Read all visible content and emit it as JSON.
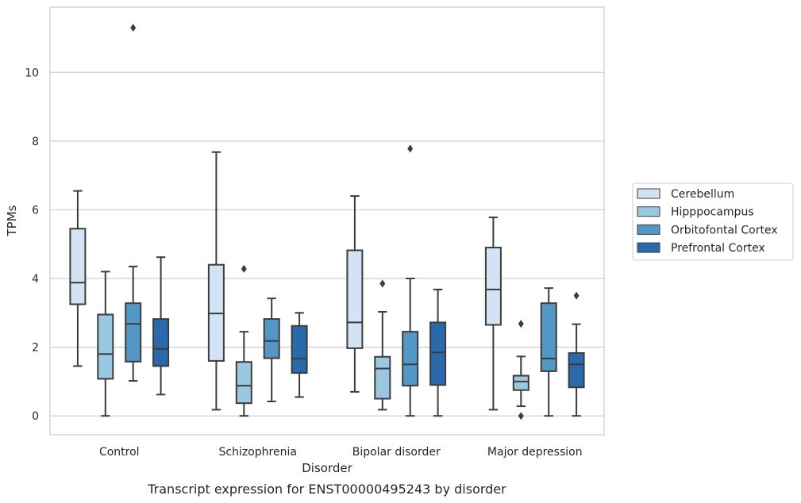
{
  "chart_data": {
    "type": "box",
    "xlabel": "Disorder",
    "ylabel": "TPMs",
    "caption": "Transcript expression for ENST00000495243 by disorder",
    "ylim": [
      -0.55,
      11.9
    ],
    "yticks": [
      "0",
      "2",
      "4",
      "6",
      "8",
      "10"
    ],
    "grid": "horizontal",
    "legend_position": "right",
    "categories": [
      "Control",
      "Schizophrenia",
      "Bipolar disorder",
      "Major depression"
    ],
    "series": [
      {
        "name": "Cerebellum",
        "color": "#d3e3f3",
        "boxes": [
          {
            "whislo": 1.45,
            "q1": 3.25,
            "med": 3.88,
            "q3": 5.45,
            "whishi": 6.55,
            "fliers": []
          },
          {
            "whislo": 0.18,
            "q1": 1.6,
            "med": 2.98,
            "q3": 4.4,
            "whishi": 7.68,
            "fliers": []
          },
          {
            "whislo": 0.7,
            "q1": 1.97,
            "med": 2.72,
            "q3": 4.82,
            "whishi": 6.4,
            "fliers": []
          },
          {
            "whislo": 0.18,
            "q1": 2.65,
            "med": 3.68,
            "q3": 4.9,
            "whishi": 5.78,
            "fliers": []
          }
        ]
      },
      {
        "name": "Hipppocampus",
        "color": "#9ac8e0",
        "boxes": [
          {
            "whislo": 0.0,
            "q1": 1.08,
            "med": 1.8,
            "q3": 2.95,
            "whishi": 4.2,
            "fliers": []
          },
          {
            "whislo": 0.0,
            "q1": 0.37,
            "med": 0.88,
            "q3": 1.57,
            "whishi": 2.45,
            "fliers": [
              4.28
            ]
          },
          {
            "whislo": 0.18,
            "q1": 0.5,
            "med": 1.38,
            "q3": 1.72,
            "whishi": 3.03,
            "fliers": [
              3.85
            ]
          },
          {
            "whislo": 0.28,
            "q1": 0.75,
            "med": 1.0,
            "q3": 1.17,
            "whishi": 1.73,
            "fliers": [
              0.0,
              2.68
            ]
          }
        ]
      },
      {
        "name": "Orbitofontal Cortex",
        "color": "#5297c6",
        "boxes": [
          {
            "whislo": 1.02,
            "q1": 1.58,
            "med": 2.68,
            "q3": 3.28,
            "whishi": 4.35,
            "fliers": [
              11.3
            ]
          },
          {
            "whislo": 0.42,
            "q1": 1.68,
            "med": 2.18,
            "q3": 2.82,
            "whishi": 3.42,
            "fliers": []
          },
          {
            "whislo": 0.0,
            "q1": 0.88,
            "med": 1.5,
            "q3": 2.45,
            "whishi": 4.0,
            "fliers": [
              7.78
            ]
          },
          {
            "whislo": 0.0,
            "q1": 1.3,
            "med": 1.67,
            "q3": 3.28,
            "whishi": 3.72,
            "fliers": []
          }
        ]
      },
      {
        "name": "Prefrontal Cortex",
        "color": "#2a69ac",
        "boxes": [
          {
            "whislo": 0.62,
            "q1": 1.45,
            "med": 1.95,
            "q3": 2.82,
            "whishi": 4.62,
            "fliers": []
          },
          {
            "whislo": 0.55,
            "q1": 1.25,
            "med": 1.67,
            "q3": 2.62,
            "whishi": 3.0,
            "fliers": []
          },
          {
            "whislo": 0.0,
            "q1": 0.9,
            "med": 1.85,
            "q3": 2.72,
            "whishi": 3.68,
            "fliers": []
          },
          {
            "whislo": 0.0,
            "q1": 0.83,
            "med": 1.5,
            "q3": 1.83,
            "whishi": 2.67,
            "fliers": [
              3.5
            ]
          }
        ]
      }
    ]
  }
}
